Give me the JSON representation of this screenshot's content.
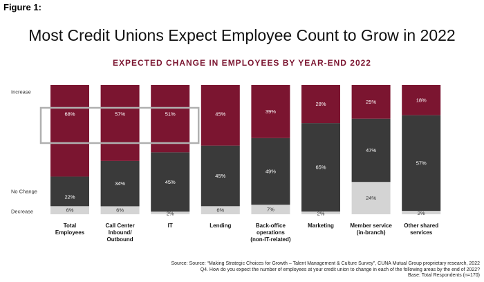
{
  "figure_label": "Figure 1:",
  "title": "Most Credit Unions Expect Employee Count to Grow in 2022",
  "subtitle": "EXPECTED CHANGE IN EMPLOYEES BY YEAR-END 2022",
  "source": {
    "line1": "Source: Source: “Making Strategic Choices for Growth – Talent Management & Culture Survey”, CUNA Mutual Group proprietary research, 2022",
    "line2": "Q4. How do you expect the number of employees at your credit union to change in each of the following areas by the end of 2022?",
    "line3": "Base: Total Respondents (n=170)"
  },
  "colors": {
    "increase": "#7b1530",
    "no_change": "#3a3a3a",
    "decrease": "#d4d4d4",
    "highlight_box": "#b0b0b0"
  },
  "chart_data": {
    "type": "bar",
    "stacked": true,
    "y_axis_labels": [
      "Increase",
      "No Change",
      "Decrease"
    ],
    "categories": [
      [
        "Total",
        "Employees"
      ],
      [
        "Call Center",
        "Inbound/",
        "Outbound"
      ],
      [
        "IT"
      ],
      [
        "Lending"
      ],
      [
        "Back-office",
        "operations",
        "(non-IT-related)"
      ],
      [
        "Marketing"
      ],
      [
        "Member service",
        "(in-branch)"
      ],
      [
        "Other shared",
        "services"
      ]
    ],
    "series": [
      {
        "name": "Decrease",
        "values": [
          6,
          6,
          2,
          6,
          7,
          2,
          24,
          2
        ],
        "labels": [
          "6%",
          "6%",
          "2%",
          "6%",
          "7%",
          "2%",
          "24%",
          "2%"
        ]
      },
      {
        "name": "No Change",
        "values": [
          22,
          34,
          45,
          45,
          49,
          65,
          47,
          57
        ],
        "labels": [
          "22%",
          "34%",
          "45%",
          "45%",
          "49%",
          "65%",
          "47%",
          "57%"
        ]
      },
      {
        "name": "Increase",
        "values": [
          68,
          57,
          51,
          45,
          39,
          28,
          25,
          18
        ],
        "labels": [
          "68%",
          "57%",
          "51%",
          "45%",
          "39%",
          "28%",
          "25%",
          "18%"
        ]
      }
    ],
    "highlighted_categories": [
      0,
      1,
      2
    ]
  }
}
